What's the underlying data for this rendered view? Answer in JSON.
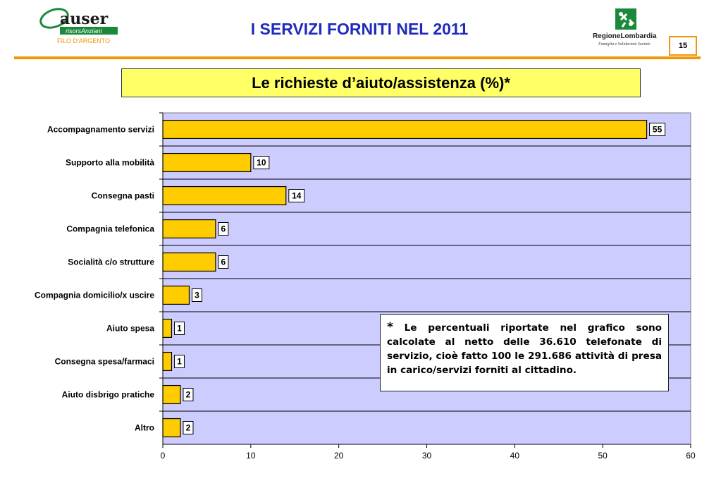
{
  "header": {
    "title": "I SERVIZI FORNITI NEL 2011",
    "page_number": "15",
    "accent_color": "#f0960a",
    "title_color": "#1f2bbd",
    "logo_left": {
      "name": "auser",
      "tagline": "risorsAnziani",
      "subline": "FILO D'ARGENTO"
    },
    "logo_right": {
      "name": "RegioneLombardia",
      "subline": "Famiglia e Solidarietà Sociale"
    }
  },
  "chart_data": {
    "type": "bar",
    "orientation": "horizontal",
    "title": "Le richieste d’aiuto/assistenza (%)*",
    "categories": [
      "Accompagnamento servizi",
      "Supporto alla mobilità",
      "Consegna pasti",
      "Compagnia telefonica",
      "Socialità c/o strutture",
      "Compagnia domicilio/x uscire",
      "Aiuto spesa",
      "Consegna spesa/farmaci",
      "Aiuto disbrigo pratiche",
      "Altro"
    ],
    "values": [
      55,
      10,
      14,
      6,
      6,
      3,
      1,
      1,
      2,
      2
    ],
    "xlim": [
      0,
      60
    ],
    "xticks": [
      0,
      10,
      20,
      30,
      40,
      50,
      60
    ],
    "grid": "horizontal lines between categories",
    "bar_color": "#ffcc00",
    "plot_background": "#ccccff",
    "data_labels": true
  },
  "footnote": {
    "star": "*",
    "text": " Le percentuali riportate nel grafico sono calcolate al netto delle 36.610 telefonate di servizio, cioè fatto 100 le 291.686 attività di presa in carico/servizi forniti al cittadino."
  }
}
